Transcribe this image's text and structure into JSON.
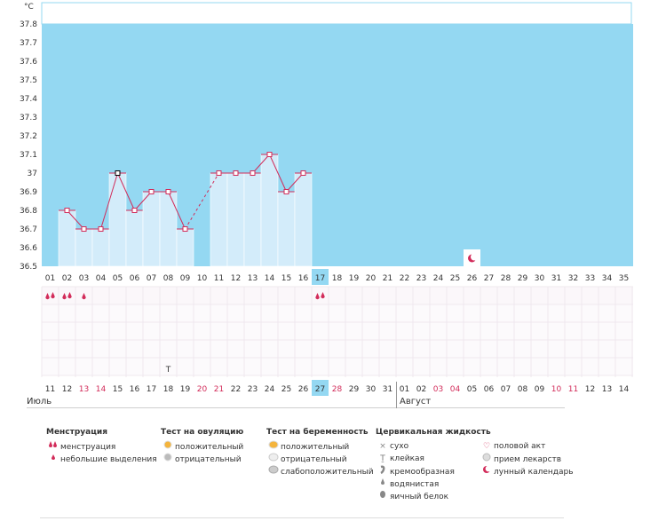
{
  "chart_data": {
    "type": "bar",
    "ylabel": "°C",
    "ylim": [
      36.5,
      37.8
    ],
    "yticks": [
      "37.8",
      "37.7",
      "37.6",
      "37.5",
      "37.4",
      "37.3",
      "37.2",
      "37.1",
      "37",
      "36.9",
      "36.8",
      "36.7",
      "36.6",
      "36.5"
    ],
    "cycle_days": [
      "01",
      "02",
      "03",
      "04",
      "05",
      "06",
      "07",
      "08",
      "09",
      "10",
      "11",
      "12",
      "13",
      "14",
      "15",
      "16",
      "17",
      "18",
      "19",
      "20",
      "21",
      "22",
      "23",
      "24",
      "25",
      "26",
      "27",
      "28",
      "29",
      "30",
      "31",
      "32",
      "33",
      "34",
      "35"
    ],
    "dates": [
      "11",
      "12",
      "13",
      "14",
      "15",
      "16",
      "17",
      "18",
      "19",
      "20",
      "21",
      "22",
      "23",
      "24",
      "25",
      "26",
      "27",
      "28",
      "29",
      "30",
      "31",
      "01",
      "02",
      "03",
      "04",
      "05",
      "06",
      "07",
      "08",
      "09",
      "10",
      "11",
      "12",
      "13",
      "14"
    ],
    "red_dates": [
      2,
      3,
      9,
      10,
      17,
      23,
      24,
      30,
      31
    ],
    "today_index": 16,
    "values": [
      null,
      36.8,
      36.7,
      36.7,
      37.0,
      36.8,
      36.9,
      36.9,
      36.7,
      null,
      37.0,
      37.0,
      37.0,
      37.1,
      36.9,
      37.0,
      null,
      null,
      null,
      null,
      null,
      null,
      null,
      null,
      null,
      null,
      null,
      null,
      null,
      null,
      null,
      null,
      null,
      null,
      null
    ],
    "highlight_index": 4,
    "menstruation": [
      {
        "day": 0,
        "kind": "double"
      },
      {
        "day": 1,
        "kind": "double"
      },
      {
        "day": 2,
        "kind": "single"
      },
      {
        "day": 16,
        "kind": "double"
      }
    ],
    "cervical_sticky_day": 7,
    "moon_day": 25,
    "months": [
      "Июль",
      "Август"
    ],
    "month_break_index": 21
  },
  "legend": {
    "menstruation": {
      "title": "Менструация",
      "items": [
        "менструация",
        "небольшие выделения"
      ]
    },
    "ovulation": {
      "title": "Тест на овуляцию",
      "items": [
        "положительный",
        "отрицательный"
      ]
    },
    "pregnancy": {
      "title": "Тест на беременность",
      "items": [
        "положительный",
        "отрицательный",
        "слабоположительный"
      ]
    },
    "cervical": {
      "title": "Цервикальная жидкость",
      "items": [
        "сухо",
        "клейкая",
        "кремообразная",
        "водянистая",
        "яичный белок"
      ]
    },
    "other": {
      "items": [
        "половой акт",
        "прием лекарств",
        "лунный календарь"
      ]
    }
  },
  "colors": {
    "background": "#94d8f2",
    "bar": "#d3ecfa",
    "line": "#d22c5a",
    "accent": "#d22c5a",
    "today": "#94d8f2"
  }
}
